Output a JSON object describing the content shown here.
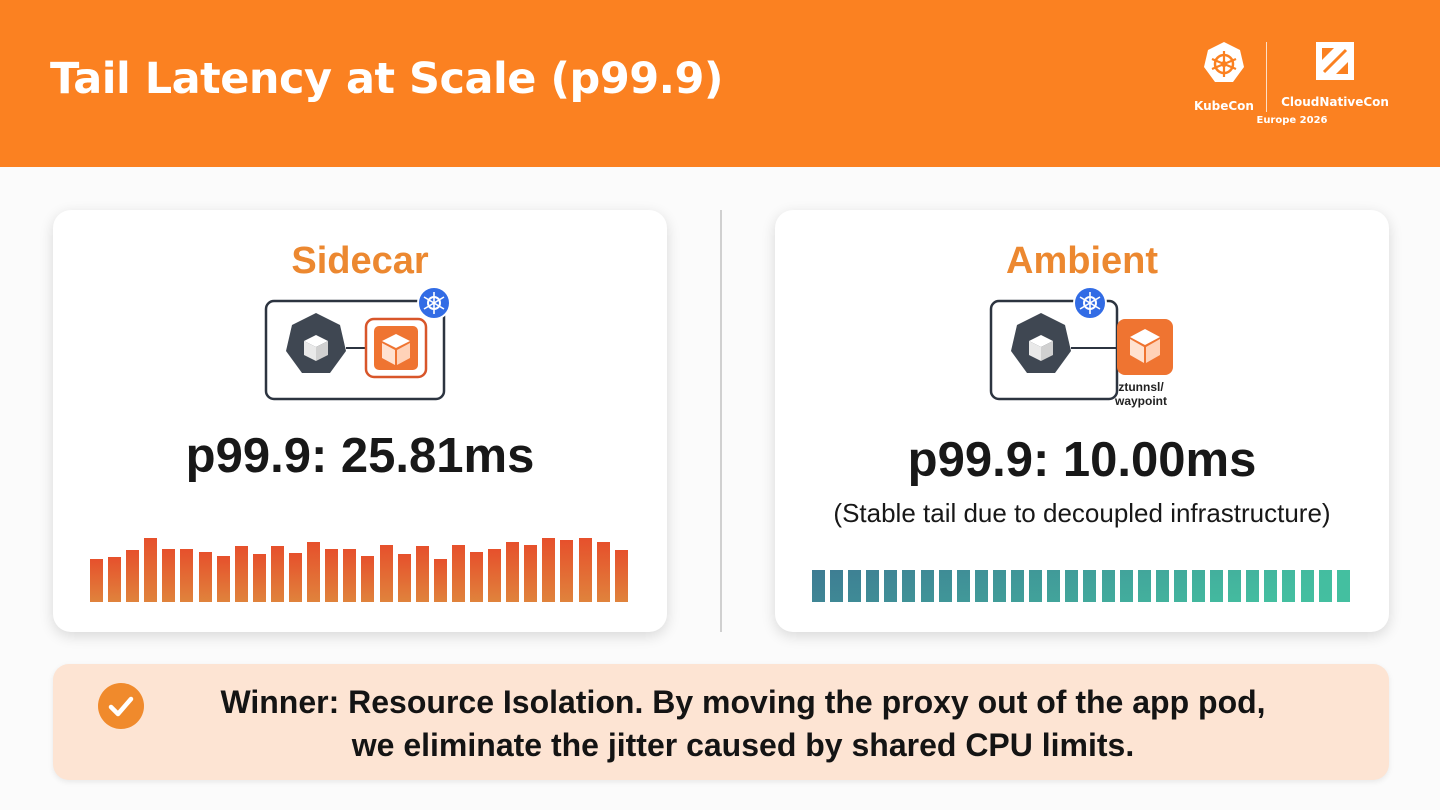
{
  "slide": {
    "title": "Tail Latency at Scale (p99.9)",
    "logos": {
      "kubecon": "KubeCon",
      "cloudnativecon": "CloudNativeCon",
      "event": "Europe 2026"
    }
  },
  "sidecar": {
    "title": "Sidecar",
    "metric": "p99.9: 25.81ms",
    "latency_bars": [
      0.62,
      0.64,
      0.74,
      0.92,
      0.76,
      0.76,
      0.72,
      0.65,
      0.8,
      0.68,
      0.8,
      0.7,
      0.86,
      0.76,
      0.76,
      0.66,
      0.82,
      0.69,
      0.8,
      0.62,
      0.82,
      0.72,
      0.76,
      0.86,
      0.82,
      0.92,
      0.88,
      0.92,
      0.85,
      0.74
    ]
  },
  "ambient": {
    "title": "Ambient",
    "metric": "p99.9: 10.00ms",
    "note": "(Stable tail due to decoupled infrastructure)",
    "component_label_1": "ztunnsl/",
    "component_label_2": "waypoint",
    "latency_bars": [
      0.46,
      0.46,
      0.46,
      0.46,
      0.46,
      0.46,
      0.46,
      0.46,
      0.46,
      0.46,
      0.46,
      0.46,
      0.46,
      0.46,
      0.46,
      0.46,
      0.46,
      0.46,
      0.46,
      0.46,
      0.46,
      0.46,
      0.46,
      0.46,
      0.46,
      0.46,
      0.46,
      0.46,
      0.46,
      0.46
    ]
  },
  "callout": {
    "line1": "Winner: Resource Isolation. By moving the proxy out of the app pod,",
    "line2": "we eliminate the jitter caused by shared CPU limits."
  },
  "colors": {
    "header": "#fb8121",
    "accent": "#ec8830",
    "sidecar_bar_top": "#e6502c",
    "sidecar_bar_bottom": "#e0833c",
    "ambient_bar_left": "#3e7c93",
    "ambient_bar_right": "#44bfa0",
    "callout_bg": "#fde4d3"
  },
  "icons": [
    "kubecon-logo-icon",
    "cloudnativecon-logo-icon",
    "kubernetes-icon",
    "pod-cube-icon",
    "proxy-cube-icon",
    "checkmark-icon"
  ]
}
